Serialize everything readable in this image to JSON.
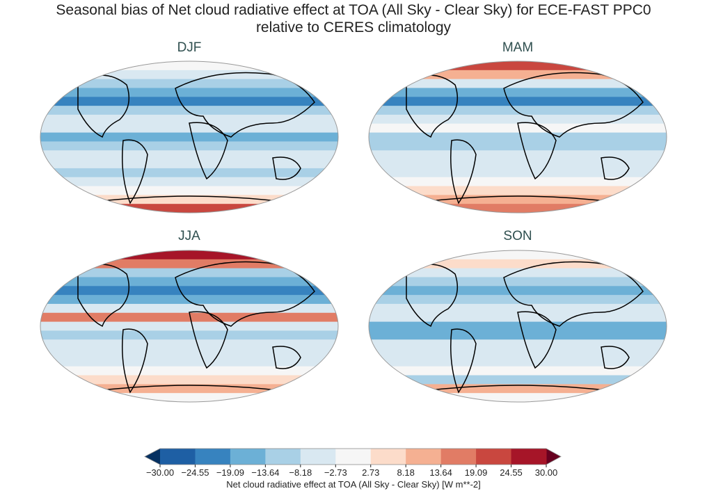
{
  "title_line1": "Seasonal bias of Net cloud radiative effect at TOA (All Sky - Clear Sky) for ECE-FAST PPC0",
  "title_line2": "relative to CERES climatology",
  "panels": [
    {
      "label": "DJF"
    },
    {
      "label": "MAM"
    },
    {
      "label": "JJA"
    },
    {
      "label": "SON"
    }
  ],
  "colorbar": {
    "label": "Net cloud radiative effect at TOA (All Sky - Clear Sky) [W m**-2]",
    "ticks": [
      "−30.00",
      "−24.55",
      "−19.09",
      "−13.64",
      "−8.18",
      "−2.73",
      "2.73",
      "8.18",
      "13.64",
      "19.09",
      "24.55",
      "30.00"
    ],
    "range": [
      -30,
      30
    ],
    "extend": "both",
    "colormap": "RdBu_r",
    "colors": [
      "#1e5fa4",
      "#3783bf",
      "#6cb0d6",
      "#a9d0e6",
      "#d9e8f1",
      "#f6f6f6",
      "#fcdcca",
      "#f5b092",
      "#e17c65",
      "#c9473f",
      "#a61528"
    ],
    "under_color": "#053061",
    "over_color": "#67001f"
  }
}
